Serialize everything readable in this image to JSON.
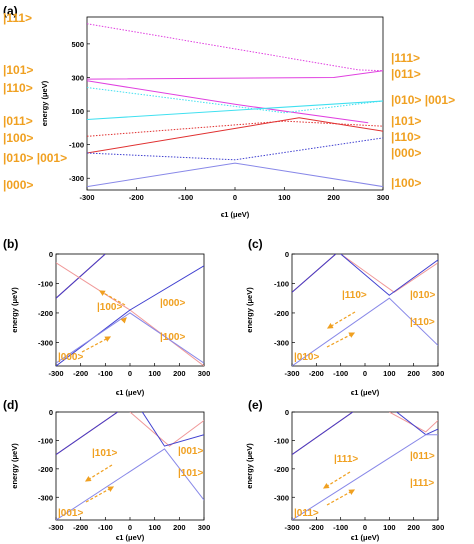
{
  "colors": {
    "red": "#e03030",
    "blue": "#4040d0",
    "blue_light": "#8888e8",
    "magenta": "#e040e0",
    "pink": "#f09898",
    "cyan": "#40e0f0",
    "orange": "#f0a020"
  },
  "chart_data": [
    {
      "panel": "(a)",
      "type": "line",
      "xlabel": "ϵ1 (μeV)",
      "ylabel": "energy (μeV)",
      "xlim": [
        -300,
        300
      ],
      "ylim": [
        -370,
        660
      ],
      "x_ticks": [
        -300,
        -200,
        -100,
        0,
        100,
        200,
        300
      ],
      "y_ticks": [
        500,
        300,
        100,
        -100,
        -300
      ],
      "series": [
        {
          "color": "magenta",
          "dotted": true,
          "points": [
            [
              -300,
              620
            ],
            [
              250,
              345
            ],
            [
              300,
              340
            ]
          ]
        },
        {
          "color": "magenta",
          "dotted": false,
          "points": [
            [
              -300,
              290
            ],
            [
              200,
              300
            ],
            [
              300,
              340
            ]
          ]
        },
        {
          "color": "magenta",
          "dotted": false,
          "points": [
            [
              -300,
              280
            ],
            [
              0,
              140
            ],
            [
              270,
              30
            ]
          ]
        },
        {
          "color": "cyan",
          "dotted": false,
          "points": [
            [
              -300,
              50
            ],
            [
              300,
              160
            ]
          ]
        },
        {
          "color": "cyan",
          "dotted": true,
          "points": [
            [
              -300,
              240
            ],
            [
              100,
              90
            ],
            [
              300,
              160
            ]
          ]
        },
        {
          "color": "red",
          "dotted": false,
          "points": [
            [
              -300,
              -150
            ],
            [
              130,
              60
            ],
            [
              300,
              -20
            ]
          ]
        },
        {
          "color": "red",
          "dotted": true,
          "points": [
            [
              -300,
              -50
            ],
            [
              100,
              40
            ],
            [
              300,
              10
            ]
          ]
        },
        {
          "color": "blue",
          "dotted": true,
          "points": [
            [
              -300,
              -150
            ],
            [
              0,
              -190
            ],
            [
              300,
              -60
            ]
          ]
        },
        {
          "color": "blue_light",
          "dotted": false,
          "points": [
            [
              -300,
              -350
            ],
            [
              0,
              -210
            ],
            [
              300,
              -350
            ]
          ]
        }
      ],
      "state_labels_left": [
        "|111>",
        "|101>",
        "|110>",
        "|011>",
        "|100>",
        "|010> |001>",
        "|000>"
      ],
      "state_labels_right": [
        "|111>",
        "|011>",
        "|010> |001>",
        "|101>",
        "|110>",
        "|000>",
        "|100>"
      ]
    },
    {
      "panel": "(b)",
      "type": "line",
      "xlabel": "ϵ1 (μeV)",
      "ylabel": "energy (μeV)",
      "xlim": [
        -300,
        300
      ],
      "ylim": [
        -380,
        0
      ],
      "x_ticks": [
        -300,
        -200,
        -100,
        0,
        100,
        200,
        300
      ],
      "y_ticks": [
        0,
        -100,
        -200,
        -300
      ],
      "series": [
        {
          "color": "red",
          "points": [
            [
              -300,
              -150
            ],
            [
              -100,
              0
            ]
          ]
        },
        {
          "color": "blue",
          "points": [
            [
              -300,
              -150
            ],
            [
              -100,
              0
            ]
          ]
        },
        {
          "color": "pink",
          "points": [
            [
              -300,
              -30
            ],
            [
              0,
              -190
            ],
            [
              300,
              -380
            ]
          ]
        },
        {
          "color": "blue",
          "points": [
            [
              -300,
              -380
            ],
            [
              0,
              -190
            ],
            [
              300,
              -40
            ]
          ]
        },
        {
          "color": "blue_light",
          "points": [
            [
              -300,
              -370
            ],
            [
              0,
              -200
            ],
            [
              300,
              -370
            ]
          ]
        }
      ],
      "state_labels": [
        "|100>",
        "|000>",
        "|100>",
        "|000>"
      ]
    },
    {
      "panel": "(c)",
      "type": "line",
      "xlabel": "ϵ1 (μeV)",
      "ylabel": "energy (μeV)",
      "xlim": [
        -300,
        300
      ],
      "ylim": [
        -380,
        0
      ],
      "x_ticks": [
        -300,
        -200,
        -100,
        0,
        100,
        200,
        300
      ],
      "y_ticks": [
        0,
        -100,
        -200,
        -300
      ],
      "series": [
        {
          "color": "red",
          "points": [
            [
              -300,
              -130
            ],
            [
              -120,
              0
            ]
          ]
        },
        {
          "color": "blue",
          "points": [
            [
              -300,
              -130
            ],
            [
              -120,
              0
            ]
          ]
        },
        {
          "color": "pink",
          "points": [
            [
              -100,
              0
            ],
            [
              120,
              -130
            ],
            [
              300,
              -30
            ]
          ]
        },
        {
          "color": "blue",
          "points": [
            [
              -100,
              0
            ],
            [
              100,
              -140
            ],
            [
              300,
              -20
            ]
          ]
        },
        {
          "color": "blue_light",
          "points": [
            [
              -300,
              -380
            ],
            [
              100,
              -150
            ],
            [
              300,
              -310
            ]
          ]
        }
      ],
      "state_labels": [
        "|110>",
        "|010>",
        "|110>",
        "|010>"
      ]
    },
    {
      "panel": "(d)",
      "type": "line",
      "xlabel": "ϵ1 (μeV)",
      "ylabel": "energy (μeV)",
      "xlim": [
        -300,
        300
      ],
      "ylim": [
        -380,
        0
      ],
      "x_ticks": [
        -300,
        -200,
        -100,
        0,
        100,
        200,
        300
      ],
      "y_ticks": [
        0,
        -100,
        -200,
        -300
      ],
      "series": [
        {
          "color": "red",
          "points": [
            [
              -300,
              -150
            ],
            [
              -50,
              0
            ]
          ]
        },
        {
          "color": "blue",
          "points": [
            [
              -300,
              -150
            ],
            [
              -50,
              0
            ]
          ]
        },
        {
          "color": "pink",
          "points": [
            [
              0,
              0
            ],
            [
              160,
              -120
            ],
            [
              300,
              -30
            ]
          ]
        },
        {
          "color": "blue",
          "points": [
            [
              50,
              0
            ],
            [
              140,
              -120
            ],
            [
              300,
              -80
            ]
          ]
        },
        {
          "color": "blue_light",
          "points": [
            [
              -300,
              -380
            ],
            [
              140,
              -130
            ],
            [
              300,
              -310
            ]
          ]
        }
      ],
      "state_labels": [
        "|101>",
        "|001>",
        "|101>",
        "|001>"
      ]
    },
    {
      "panel": "(e)",
      "type": "line",
      "xlabel": "ϵ1 (μeV)",
      "ylabel": "energy (μeV)",
      "xlim": [
        -300,
        300
      ],
      "ylim": [
        -380,
        0
      ],
      "x_ticks": [
        -300,
        -200,
        -100,
        0,
        100,
        200,
        300
      ],
      "y_ticks": [
        0,
        -100,
        -200,
        -300
      ],
      "series": [
        {
          "color": "red",
          "points": [
            [
              -300,
              -150
            ],
            [
              -50,
              0
            ]
          ]
        },
        {
          "color": "blue",
          "points": [
            [
              -300,
              -150
            ],
            [
              -50,
              0
            ]
          ]
        },
        {
          "color": "pink",
          "points": [
            [
              100,
              0
            ],
            [
              250,
              -70
            ],
            [
              300,
              -30
            ]
          ]
        },
        {
          "color": "blue",
          "points": [
            [
              130,
              0
            ],
            [
              250,
              -80
            ],
            [
              300,
              -60
            ]
          ]
        },
        {
          "color": "blue_light",
          "points": [
            [
              -300,
              -380
            ],
            [
              250,
              -80
            ],
            [
              300,
              -80
            ]
          ]
        }
      ],
      "state_labels": [
        "|111>",
        "|011>",
        "|111>",
        "|011>"
      ]
    }
  ]
}
